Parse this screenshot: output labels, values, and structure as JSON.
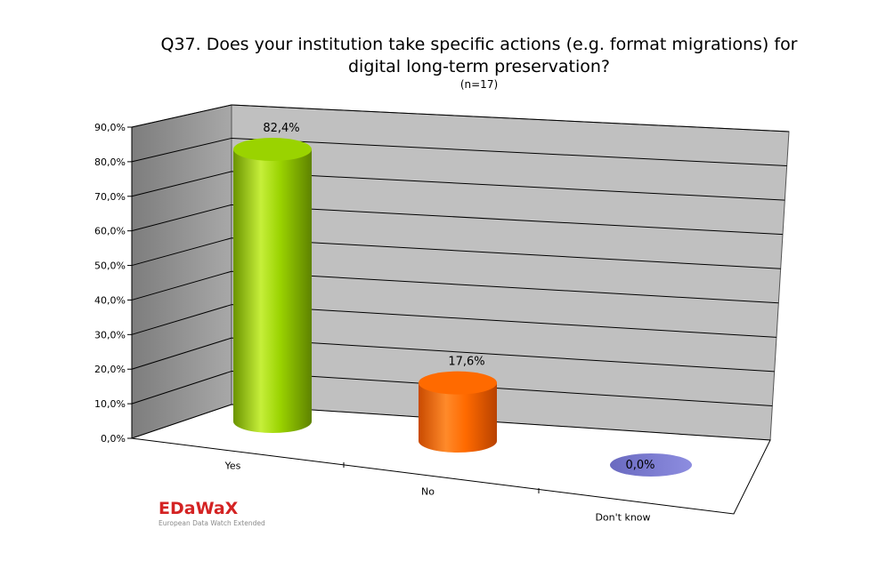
{
  "chart_data": {
    "type": "bar",
    "title_line1": "Q37. Does your institution take specific actions (e.g. format migrations) for",
    "title_line2": "digital long-term preservation?",
    "subtitle": "(n=17)",
    "categories": [
      "Yes",
      "No",
      "Don't know"
    ],
    "values": [
      82.4,
      17.6,
      0.0
    ],
    "value_labels": [
      "82,4%",
      "17,6%",
      "0,0%"
    ],
    "colors": [
      "#9ad300",
      "#ff6a00",
      "#7b7bd0"
    ],
    "y_ticks": [
      "0,0%",
      "10,0%",
      "20,0%",
      "30,0%",
      "40,0%",
      "50,0%",
      "60,0%",
      "70,0%",
      "80,0%",
      "90,0%"
    ],
    "ylim": [
      0,
      90
    ],
    "grid": true,
    "style": "3d-cylinder"
  },
  "logo": {
    "name": "EDaWaX",
    "tagline": "European Data Watch Extended"
  }
}
